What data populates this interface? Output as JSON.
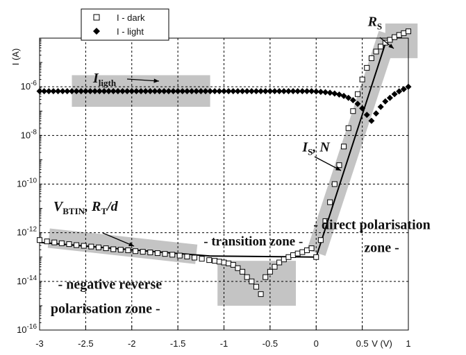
{
  "chart_data": {
    "type": "scatter",
    "xlabel": "V (V)",
    "ylabel": "I (A)",
    "y_scale": "log",
    "xlim": [
      -3,
      1
    ],
    "ylim": [
      1e-16,
      0.0001
    ],
    "grid": true,
    "legend_position": "top-left",
    "x_ticks": [
      "-3",
      "-2.5",
      "-2",
      "-1.5",
      "-1",
      "-0.5",
      "0",
      "0.5",
      "1"
    ],
    "y_ticks": [
      {
        "base": "10",
        "exp": "-6",
        "value": 1e-06
      },
      {
        "base": "10",
        "exp": "-8",
        "value": 1e-08
      },
      {
        "base": "10",
        "exp": "-10",
        "value": 1e-10
      },
      {
        "base": "10",
        "exp": "-12",
        "value": 1e-12
      },
      {
        "base": "10",
        "exp": "-14",
        "value": 1e-14
      },
      {
        "base": "10",
        "exp": "-16",
        "value": 1e-16
      }
    ],
    "series": [
      {
        "name": "I - dark",
        "marker": "open-square",
        "x": [
          -3.0,
          -2.92,
          -2.84,
          -2.76,
          -2.68,
          -2.6,
          -2.52,
          -2.44,
          -2.36,
          -2.28,
          -2.2,
          -2.12,
          -2.04,
          -1.96,
          -1.88,
          -1.8,
          -1.72,
          -1.64,
          -1.56,
          -1.48,
          -1.4,
          -1.32,
          -1.24,
          -1.16,
          -1.1,
          -1.05,
          -1.0,
          -0.95,
          -0.9,
          -0.85,
          -0.8,
          -0.75,
          -0.7,
          -0.65,
          -0.6,
          -0.55,
          -0.5,
          -0.45,
          -0.4,
          -0.35,
          -0.3,
          -0.25,
          -0.2,
          -0.15,
          -0.1,
          -0.05,
          0.0,
          0.05,
          0.1,
          0.15,
          0.2,
          0.25,
          0.3,
          0.35,
          0.4,
          0.45,
          0.5,
          0.55,
          0.6,
          0.65,
          0.7,
          0.75,
          0.8,
          0.85,
          0.9,
          0.95,
          1.0
        ],
        "y": [
          5e-13,
          4.4e-13,
          4e-13,
          3.7e-13,
          3.4e-13,
          3.1e-13,
          2.9e-13,
          2.7e-13,
          2.5e-13,
          2.3e-13,
          2.1e-13,
          2e-13,
          1.9e-13,
          1.75e-13,
          1.65e-13,
          1.55e-13,
          1.45e-13,
          1.35e-13,
          1.25e-13,
          1.15e-13,
          1.05e-13,
          9.5e-14,
          8.5e-14,
          7.5e-14,
          7e-14,
          6.5e-14,
          6e-14,
          5.5e-14,
          4.8e-14,
          3.5e-14,
          2.5e-14,
          1.5e-14,
          1e-14,
          6e-15,
          3e-15,
          1.5e-14,
          2.5e-14,
          4e-14,
          6e-14,
          8e-14,
          1e-13,
          1.2e-13,
          1.4e-13,
          1.6e-13,
          1.9e-13,
          2.3e-13,
          1e-13,
          5e-13,
          3e-12,
          1.8e-11,
          1e-10,
          6e-10,
          3.5e-09,
          2e-08,
          1e-07,
          5e-07,
          2e-06,
          6e-06,
          1.5e-05,
          2.8e-05,
          4.5e-05,
          6.5e-05,
          8.5e-05,
          0.00011,
          0.000135,
          0.00016,
          0.00019
        ]
      },
      {
        "name": "I - light",
        "marker": "filled-diamond",
        "x": [
          -3.0,
          -2.95,
          -2.9,
          -2.85,
          -2.8,
          -2.75,
          -2.7,
          -2.65,
          -2.6,
          -2.55,
          -2.5,
          -2.45,
          -2.4,
          -2.35,
          -2.3,
          -2.25,
          -2.2,
          -2.15,
          -2.1,
          -2.05,
          -2.0,
          -1.95,
          -1.9,
          -1.85,
          -1.8,
          -1.75,
          -1.7,
          -1.65,
          -1.6,
          -1.55,
          -1.5,
          -1.45,
          -1.4,
          -1.35,
          -1.3,
          -1.25,
          -1.2,
          -1.15,
          -1.1,
          -1.05,
          -1.0,
          -0.95,
          -0.9,
          -0.85,
          -0.8,
          -0.75,
          -0.7,
          -0.65,
          -0.6,
          -0.55,
          -0.5,
          -0.45,
          -0.4,
          -0.35,
          -0.3,
          -0.25,
          -0.2,
          -0.15,
          -0.1,
          -0.05,
          0.0,
          0.05,
          0.1,
          0.15,
          0.2,
          0.25,
          0.3,
          0.35,
          0.4,
          0.45,
          0.5,
          0.55,
          0.6,
          0.65,
          0.7,
          0.75,
          0.8,
          0.85,
          0.9,
          0.95,
          1.0
        ],
        "y": [
          6.6e-07,
          6.6e-07,
          6.6e-07,
          6.6e-07,
          6.6e-07,
          6.6e-07,
          6.6e-07,
          6.6e-07,
          6.6e-07,
          6.6e-07,
          6.6e-07,
          6.6e-07,
          6.6e-07,
          6.6e-07,
          6.6e-07,
          6.6e-07,
          6.6e-07,
          6.6e-07,
          6.6e-07,
          6.6e-07,
          6.6e-07,
          6.6e-07,
          6.6e-07,
          6.6e-07,
          6.6e-07,
          6.6e-07,
          6.6e-07,
          6.6e-07,
          6.6e-07,
          6.6e-07,
          6.6e-07,
          6.6e-07,
          6.6e-07,
          6.6e-07,
          6.6e-07,
          6.6e-07,
          6.6e-07,
          6.6e-07,
          6.6e-07,
          6.6e-07,
          6.6e-07,
          6.6e-07,
          6.6e-07,
          6.6e-07,
          6.6e-07,
          6.6e-07,
          6.6e-07,
          6.6e-07,
          6.6e-07,
          6.6e-07,
          6.6e-07,
          6.6e-07,
          6.6e-07,
          6.6e-07,
          6.6e-07,
          6.6e-07,
          6.6e-07,
          6.6e-07,
          6.6e-07,
          6.6e-07,
          6.4e-07,
          6.2e-07,
          6e-07,
          5.7e-07,
          5.3e-07,
          4.8e-07,
          4.2e-07,
          3.5e-07,
          2.8e-07,
          2e-07,
          1.3e-07,
          7e-08,
          4e-08,
          8e-08,
          1.5e-07,
          2.5e-07,
          3.5e-07,
          5e-07,
          6.5e-07,
          8e-07,
          1e-06
        ]
      }
    ],
    "fit_lines": [
      {
        "x": [
          -3.0,
          -1.15
        ],
        "y": [
          4e-13,
          1.1e-13
        ]
      },
      {
        "x": [
          -1.15,
          0.0
        ],
        "y": [
          1.1e-13,
          1e-13
        ]
      },
      {
        "x": [
          0.0,
          0.75
        ],
        "y": [
          1e-13,
          6e-05
        ]
      },
      {
        "x": [
          0.75,
          1.0
        ],
        "y": [
          6e-05,
          0.00019
        ]
      }
    ],
    "regions": [
      {
        "x0": -2.65,
        "x1": -1.15,
        "y0": 1.5e-07,
        "y1": 3e-06
      },
      {
        "x0": -1.07,
        "x1": -0.22,
        "y0": 1e-15,
        "y1": 7e-14
      },
      {
        "x0": 0.75,
        "x1": 1.1,
        "y0": 1.5e-05,
        "y1": 0.0004
      }
    ],
    "bands": [
      {
        "x0": -2.9,
        "y0": 6e-13,
        "x1": -1.3,
        "y1": 1.3e-13,
        "width": 0.8
      },
      {
        "x0": 0.0,
        "y0": 1.5e-13,
        "x1": 0.78,
        "y1": 0.00015,
        "width": 0.8
      }
    ],
    "annotations": [
      {
        "main": "I",
        "sub": "ligth",
        "x": -2.42,
        "y": 1.5e-06
      },
      {
        "main": "I",
        "sub": "S",
        "rest": ", N",
        "x": -0.15,
        "y": 2.2e-09
      },
      {
        "main": "V",
        "sub": "BTIN",
        "rest": ", R",
        "sub2": "T",
        "rest2": "/d",
        "x": -2.85,
        "y": 8e-12
      },
      {
        "main": "R",
        "sub": "S",
        "x": 0.56,
        "y": 0.00032
      }
    ],
    "zone_labels": [
      {
        "text": "- direct polarisation",
        "x": -0.03,
        "y": 1.4e-12,
        "size": 20
      },
      {
        "text": "zone -",
        "x": 0.52,
        "y": 1.6e-13,
        "size": 20
      },
      {
        "text": "- transition zone -",
        "x": -1.22,
        "y": 3e-13,
        "size": 19
      },
      {
        "text": "- negative reverse",
        "x": -2.8,
        "y": 5e-15,
        "size": 20
      },
      {
        "text": "polarisation zone -",
        "x": -2.88,
        "y": 5e-16,
        "size": 20
      }
    ]
  }
}
